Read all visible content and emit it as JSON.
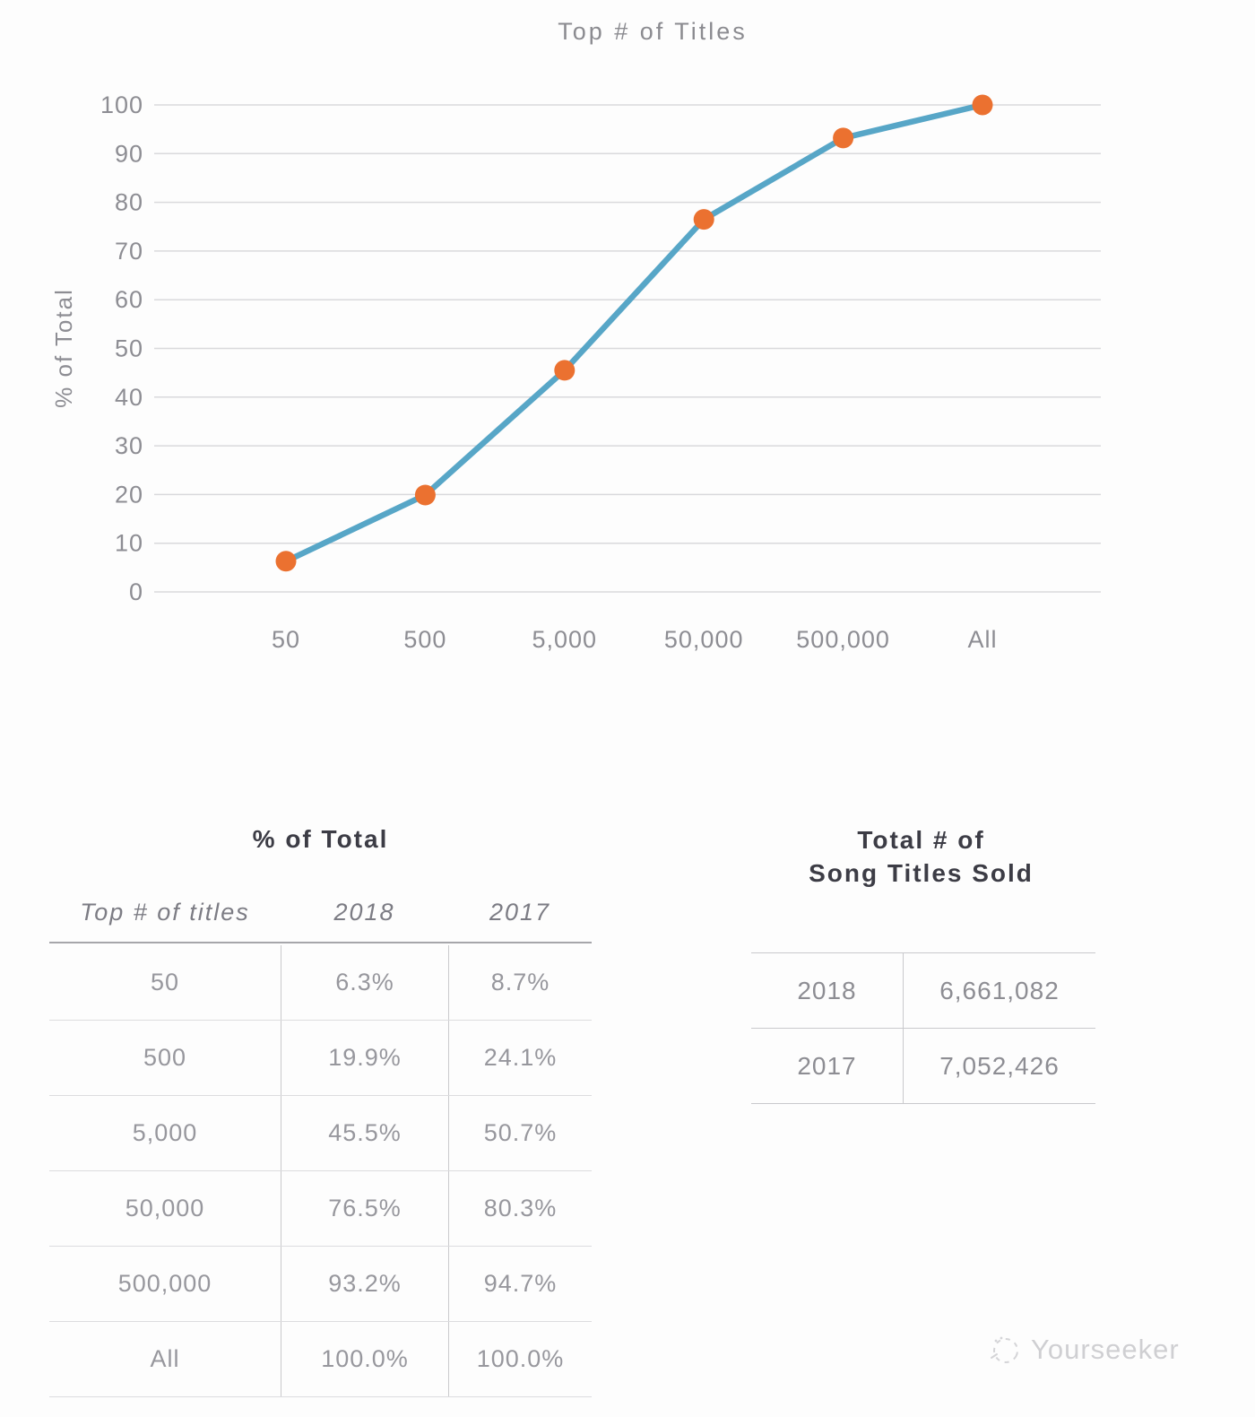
{
  "chart_data": {
    "type": "line",
    "title": "Top # of Titles",
    "ylabel": "% of Total",
    "xlabel": "",
    "categories": [
      "50",
      "500",
      "5,000",
      "50,000",
      "500,000",
      "All"
    ],
    "series": [
      {
        "name": "2018",
        "values": [
          6.3,
          19.9,
          45.5,
          76.5,
          93.2,
          100.0
        ]
      }
    ],
    "ylim": [
      0,
      100
    ],
    "yticks": [
      0,
      10,
      20,
      30,
      40,
      50,
      60,
      70,
      80,
      90,
      100
    ],
    "grid": true,
    "legend": "none",
    "line_color": "#57a6c7",
    "marker_color": "#eb7130",
    "gridline_color": "#d9d9dc"
  },
  "percent_table": {
    "title": "% of Total",
    "columns": [
      "Top # of titles",
      "2018",
      "2017"
    ],
    "rows": [
      [
        "50",
        "6.3%",
        "8.7%"
      ],
      [
        "500",
        "19.9%",
        "24.1%"
      ],
      [
        "5,000",
        "45.5%",
        "50.7%"
      ],
      [
        "50,000",
        "76.5%",
        "80.3%"
      ],
      [
        "500,000",
        "93.2%",
        "94.7%"
      ],
      [
        "All",
        "100.0%",
        "100.0%"
      ]
    ]
  },
  "totals_table": {
    "title_line1": "Total # of",
    "title_line2": "Song Titles Sold",
    "rows": [
      [
        "2018",
        "6,661,082"
      ],
      [
        "2017",
        "7,052,426"
      ]
    ]
  },
  "watermark": {
    "text": "Yourseeker"
  }
}
